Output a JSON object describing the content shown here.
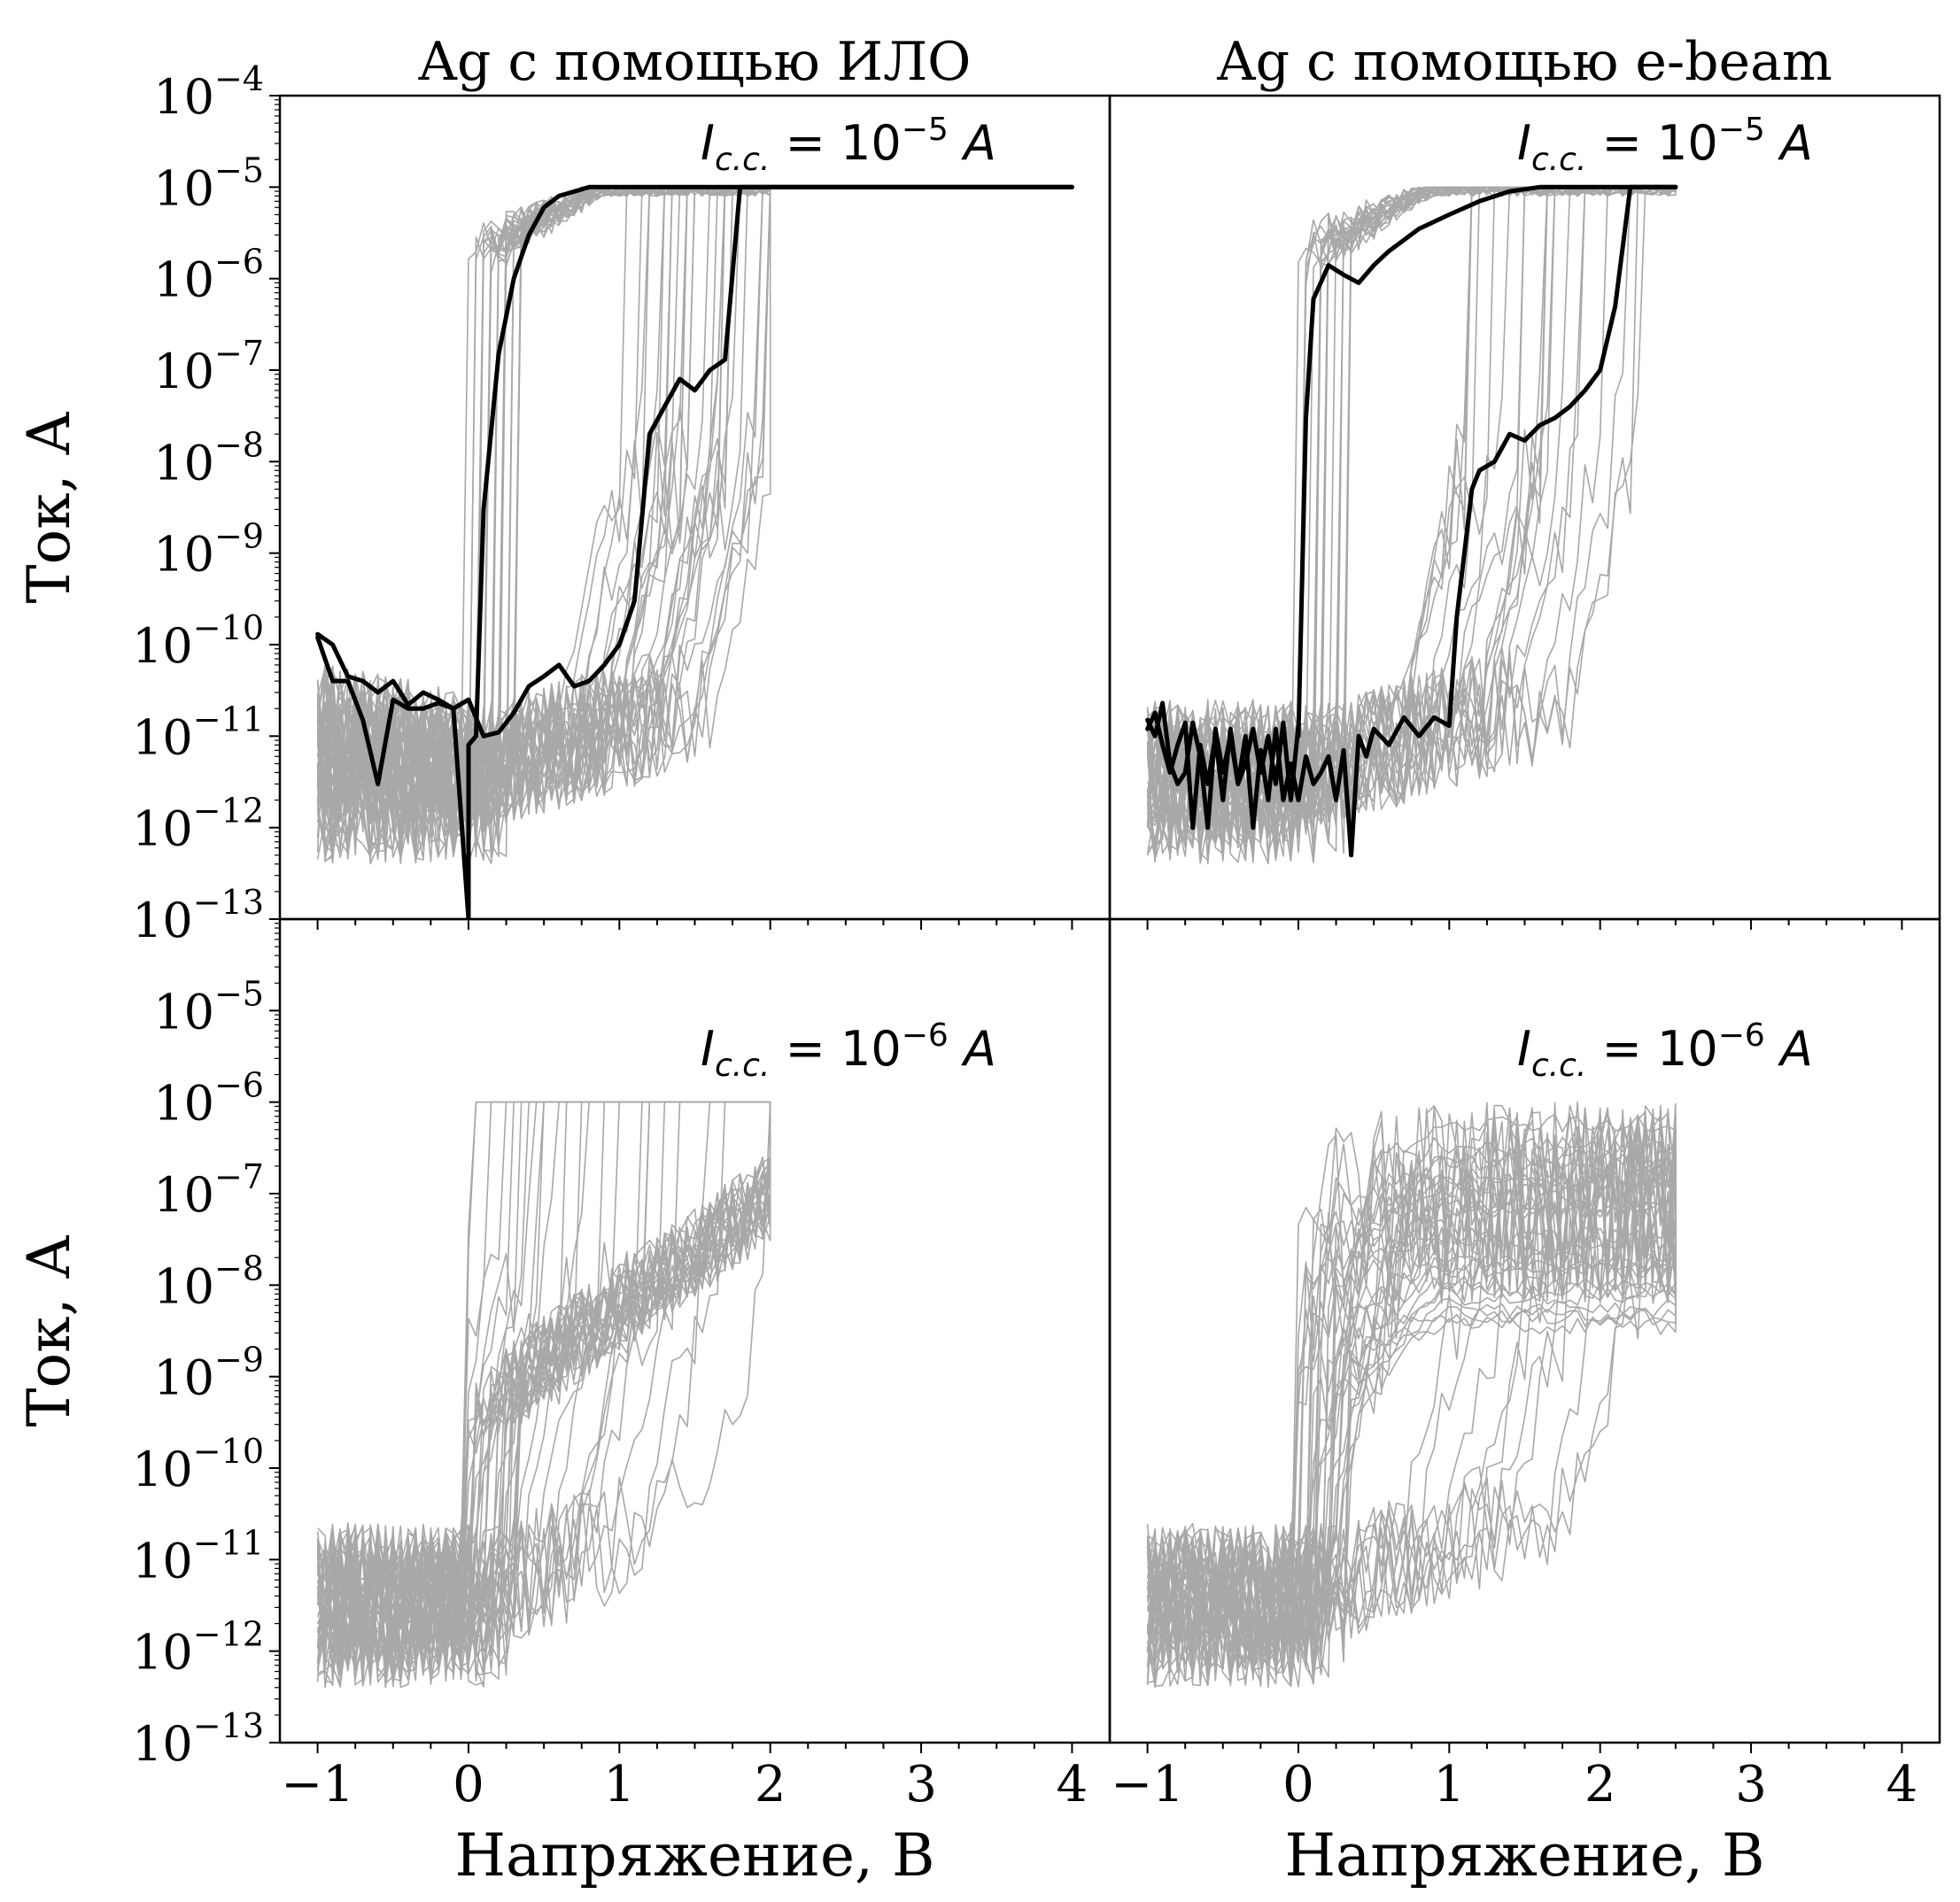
{
  "figure": {
    "ylabel": "Ток, А",
    "xlabel": "Напряжение, В",
    "y_ticks": [
      "10",
      "10",
      "10",
      "10",
      "10",
      "10",
      "10",
      "10",
      "10",
      "10"
    ],
    "y_tick_exponents": [
      "−4",
      "−5",
      "−6",
      "−7",
      "−8",
      "−9",
      "−10",
      "−11",
      "−12",
      "−13"
    ],
    "x_ticks": [
      "−1",
      "0",
      "1",
      "2",
      "3",
      "4"
    ]
  },
  "colors": {
    "cycles": "#a8a8a8",
    "highlight": "#000000",
    "axes": "#000000"
  },
  "chart_data": [
    {
      "panel": "top-left",
      "type": "line",
      "title": "Ag с помощью ИЛО",
      "annotation": {
        "base": "I",
        "sub": "c.c.",
        "rest": " = 10",
        "sup": "−5",
        "unit": " A"
      },
      "yscale": "log",
      "ylim": [
        1e-13,
        0.0001
      ],
      "xlim": [
        -1.25,
        4.25
      ],
      "grey_cycles": 30,
      "compliance": 1e-05,
      "set_V_range": [
        1.0,
        2.1
      ],
      "highlight_cycle": {
        "forward_x": [
          -1.0,
          -0.9,
          -0.8,
          -0.7,
          -0.6,
          -0.5,
          -0.4,
          -0.3,
          -0.2,
          -0.1,
          0.0,
          0.1,
          0.2,
          0.3,
          0.4,
          0.5,
          0.6,
          0.7,
          0.8,
          0.9,
          1.0,
          1.1,
          1.2,
          1.3,
          1.4,
          1.5,
          1.6,
          1.7,
          1.8,
          1.9,
          2.0,
          2.5,
          3.0,
          3.5,
          4.0
        ],
        "forward_y": [
          1.3e-10,
          1e-10,
          4.5e-11,
          4e-11,
          3e-11,
          4e-11,
          2.2e-11,
          3e-11,
          2.5e-11,
          2e-11,
          2.5e-11,
          1e-11,
          1.1e-11,
          1.8e-11,
          3.5e-11,
          4.5e-11,
          6e-11,
          3.5e-11,
          4e-11,
          6e-11,
          1e-10,
          3e-10,
          2e-08,
          4e-08,
          8e-08,
          6e-08,
          1e-07,
          1.3e-07,
          1e-05,
          1e-05,
          1e-05,
          1e-05,
          1e-05,
          1e-05,
          1e-05
        ],
        "reverse_x": [
          4.0,
          3.0,
          2.0,
          1.5,
          1.0,
          0.8,
          0.6,
          0.5,
          0.4,
          0.3,
          0.2,
          0.1,
          0.05,
          0.0,
          0.0,
          -0.1,
          -0.2,
          -0.3,
          -0.4,
          -0.5,
          -0.6,
          -0.7,
          -0.8,
          -0.9,
          -1.0
        ],
        "reverse_y": [
          1e-05,
          1e-05,
          1e-05,
          1e-05,
          1e-05,
          1e-05,
          8e-06,
          6e-06,
          3e-06,
          1e-06,
          1.5e-07,
          3e-09,
          1e-11,
          8e-12,
          1e-13,
          2e-11,
          2.3e-11,
          2e-11,
          2e-11,
          2.5e-11,
          3e-12,
          1.5e-11,
          4e-11,
          4e-11,
          1.2e-10
        ]
      }
    },
    {
      "panel": "top-right",
      "type": "line",
      "title": "Ag с помощью e-beam",
      "annotation": {
        "base": "I",
        "sub": "c.c.",
        "rest": " = 10",
        "sup": "−5",
        "unit": " A"
      },
      "yscale": "log",
      "ylim": [
        1e-13,
        0.0001
      ],
      "xlim": [
        -1.25,
        4.25
      ],
      "grey_cycles": 22,
      "compliance": 1e-05,
      "set_V_range": [
        1.1,
        2.3
      ],
      "highlight_cycle": {
        "forward_x": [
          -1.0,
          -0.95,
          -0.9,
          -0.85,
          -0.8,
          -0.75,
          -0.7,
          -0.65,
          -0.6,
          -0.55,
          -0.5,
          -0.45,
          -0.4,
          -0.35,
          -0.3,
          -0.25,
          -0.2,
          -0.15,
          -0.1,
          -0.05,
          0.0,
          0.05,
          0.1,
          0.15,
          0.2,
          0.25,
          0.3,
          0.35,
          0.4,
          0.45,
          0.5,
          0.6,
          0.7,
          0.8,
          0.9,
          1.0,
          1.05,
          1.1,
          1.15,
          1.2,
          1.3,
          1.4,
          1.5,
          1.6,
          1.7,
          1.8,
          1.9,
          2.0,
          2.1,
          2.2,
          2.5
        ],
        "forward_y": [
          1.2e-11,
          1.8e-11,
          8e-12,
          4e-12,
          8e-12,
          1.4e-11,
          1e-12,
          8e-12,
          3e-12,
          1e-11,
          2e-12,
          1.2e-11,
          3e-12,
          1e-11,
          1e-12,
          7e-12,
          2e-12,
          1.2e-11,
          2e-12,
          5e-12,
          2e-12,
          6e-12,
          3e-12,
          4e-12,
          6e-12,
          2e-12,
          7e-12,
          5e-13,
          1e-11,
          6e-12,
          1.2e-11,
          8e-12,
          1.6e-11,
          1e-11,
          1.6e-11,
          1.3e-11,
          2e-10,
          1e-09,
          5e-09,
          8e-09,
          1e-08,
          2e-08,
          1.7e-08,
          2.5e-08,
          3e-08,
          4e-08,
          6e-08,
          1e-07,
          5e-07,
          1e-05,
          1e-05
        ],
        "reverse_x": [
          2.5,
          2.0,
          1.8,
          1.6,
          1.4,
          1.2,
          1.0,
          0.8,
          0.6,
          0.5,
          0.4,
          0.3,
          0.2,
          0.1,
          0.05,
          0.0,
          0.0,
          -0.05,
          -0.1,
          -0.15,
          -0.2,
          -0.25,
          -0.3,
          -0.35,
          -0.4,
          -0.45,
          -0.5,
          -0.55,
          -0.6,
          -0.65,
          -0.7,
          -0.75,
          -0.8,
          -0.85,
          -0.9,
          -0.95,
          -1.0
        ],
        "reverse_y": [
          1e-05,
          1e-05,
          1e-05,
          1e-05,
          9e-06,
          7e-06,
          5e-06,
          3.5e-06,
          2e-06,
          1.4e-06,
          9e-07,
          1.1e-06,
          1.4e-06,
          6e-07,
          3e-08,
          1e-11,
          1.3e-11,
          2e-12,
          1.4e-11,
          3e-12,
          1e-11,
          4e-12,
          1.2e-11,
          5e-12,
          3e-12,
          1e-11,
          4e-12,
          1.2e-11,
          1e-12,
          6e-12,
          1.4e-11,
          4e-12,
          3e-12,
          5e-12,
          2.3e-11,
          1e-11,
          1.5e-11
        ]
      }
    },
    {
      "panel": "bottom-left",
      "type": "line",
      "annotation": {
        "base": "I",
        "sub": "c.c.",
        "rest": " = 10",
        "sup": "−6",
        "unit": " A"
      },
      "yscale": "log",
      "ylim": [
        1e-13,
        0.0001
      ],
      "xlim": [
        -1.25,
        4.25
      ],
      "grey_cycles": 24,
      "compliance": 1e-06,
      "set_V_range": [
        0.0,
        2.0
      ]
    },
    {
      "panel": "bottom-right",
      "type": "line",
      "annotation": {
        "base": "I",
        "sub": "c.c.",
        "rest": " = 10",
        "sup": "−6",
        "unit": " A"
      },
      "yscale": "log",
      "ylim": [
        1e-13,
        0.0001
      ],
      "xlim": [
        -1.25,
        4.25
      ],
      "grey_cycles": 22,
      "compliance": 1e-06,
      "set_V_range": [
        0.1,
        2.5
      ]
    }
  ]
}
